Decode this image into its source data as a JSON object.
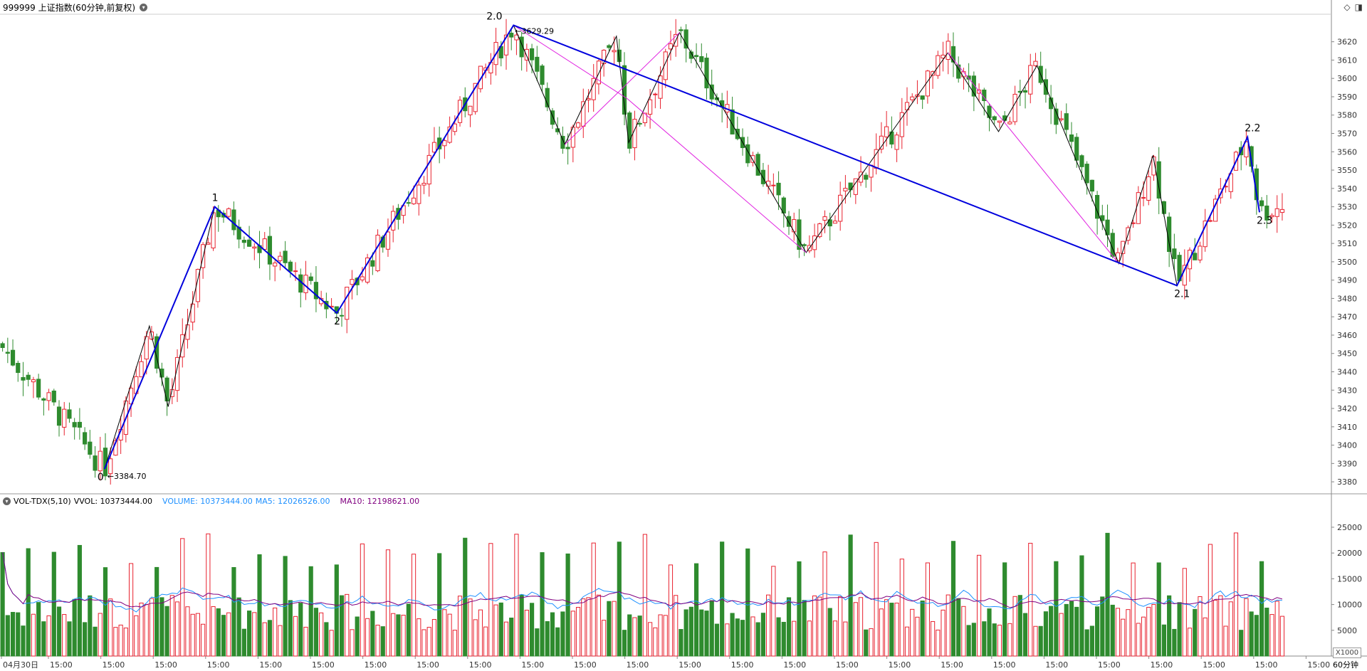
{
  "header": {
    "title": "999999 上证指数(60分钟,前复权)",
    "dropdown_icon": "chevron-down-icon",
    "right_icons": [
      "diamond-icon",
      "panel-icon"
    ]
  },
  "volume_header": {
    "indicator": "VOL-TDX(5,10)",
    "vvol": "VVOL: 10373444.00",
    "volume": "VOLUME: 10373444.00",
    "ma5": "MA5: 12026526.00",
    "ma10": "MA10: 12198621.00"
  },
  "units_label": "X1000",
  "period_label": "60分钟",
  "colors": {
    "up": "#e8222f",
    "down": "#2e8b2e",
    "wave_main": "#0000dd",
    "wave_sub": "#000000",
    "wave_alt": "#e020e0",
    "vol_line": "#1e90ff",
    "ma5": "#d02020",
    "ma10": "#800080",
    "grid": "#dddddd",
    "axis": "#888888"
  },
  "chart_data": {
    "type": "candlestick",
    "price_axis_ticks": [
      3380,
      3390,
      3400,
      3410,
      3420,
      3430,
      3440,
      3450,
      3460,
      3470,
      3480,
      3490,
      3500,
      3510,
      3520,
      3530,
      3540,
      3550,
      3560,
      3570,
      3580,
      3590,
      3600,
      3610,
      3620
    ],
    "price_range": [
      3375,
      3635
    ],
    "volume_axis_ticks": [
      5000,
      10000,
      15000,
      20000,
      25000
    ],
    "volume_range": [
      0,
      29000
    ],
    "time_labels": [
      "04月30日",
      "15:00",
      "15:00",
      "15:00",
      "15:00",
      "15:00",
      "15:00",
      "15:00",
      "15:00",
      "15:00",
      "15:00",
      "15:00",
      "15:00",
      "15:00",
      "15:00",
      "15:00",
      "15:00",
      "15:00",
      "15:00",
      "15:00",
      "15:00",
      "15:00",
      "15:00",
      "15:00",
      "15:00",
      "15:00"
    ],
    "low_marker": "3384.70",
    "high_marker": "3629.29",
    "wave_points": [
      {
        "label": "0",
        "x": 0.0785,
        "price": 3387
      },
      {
        "label": "1",
        "x": 0.1613,
        "price": 3530
      },
      {
        "label": "2",
        "x": 0.253,
        "price": 3472
      },
      {
        "label": "2.0",
        "x": 0.3857,
        "price": 3629
      },
      {
        "label": "2.1",
        "x": 0.884,
        "price": 3487
      },
      {
        "label": "2.2",
        "x": 0.937,
        "price": 3568
      },
      {
        "label": "2.3",
        "x": 0.946,
        "price": 3527
      }
    ],
    "sub_wave": [
      {
        "x": 0.0785,
        "price": 3387
      },
      {
        "x": 0.1122,
        "price": 3465
      },
      {
        "x": 0.1263,
        "price": 3421
      },
      {
        "x": 0.1613,
        "price": 3530
      },
      {
        "x": 0.253,
        "price": 3472
      },
      {
        "x": 0.3857,
        "price": 3629
      },
      {
        "x": 0.4242,
        "price": 3564
      },
      {
        "x": 0.463,
        "price": 3623
      },
      {
        "x": 0.4722,
        "price": 3565
      },
      {
        "x": 0.5103,
        "price": 3625
      },
      {
        "x": 0.6055,
        "price": 3505
      },
      {
        "x": 0.712,
        "price": 3614
      },
      {
        "x": 0.75,
        "price": 3571
      },
      {
        "x": 0.7789,
        "price": 3607
      },
      {
        "x": 0.8404,
        "price": 3499
      },
      {
        "x": 0.866,
        "price": 3558
      },
      {
        "x": 0.884,
        "price": 3487
      },
      {
        "x": 0.937,
        "price": 3568
      },
      {
        "x": 0.946,
        "price": 3527
      }
    ],
    "alt_wave": [
      {
        "x": 0.3857,
        "price": 3629
      },
      {
        "x": 0.471,
        "price": 3589
      },
      {
        "x": 0.6055,
        "price": 3505
      }
    ],
    "alt_wave2": [
      {
        "x": 0.4242,
        "price": 3564
      },
      {
        "x": 0.5103,
        "price": 3625
      }
    ],
    "alt_wave3": [
      {
        "x": 0.712,
        "price": 3614
      },
      {
        "x": 0.8404,
        "price": 3499
      }
    ]
  }
}
